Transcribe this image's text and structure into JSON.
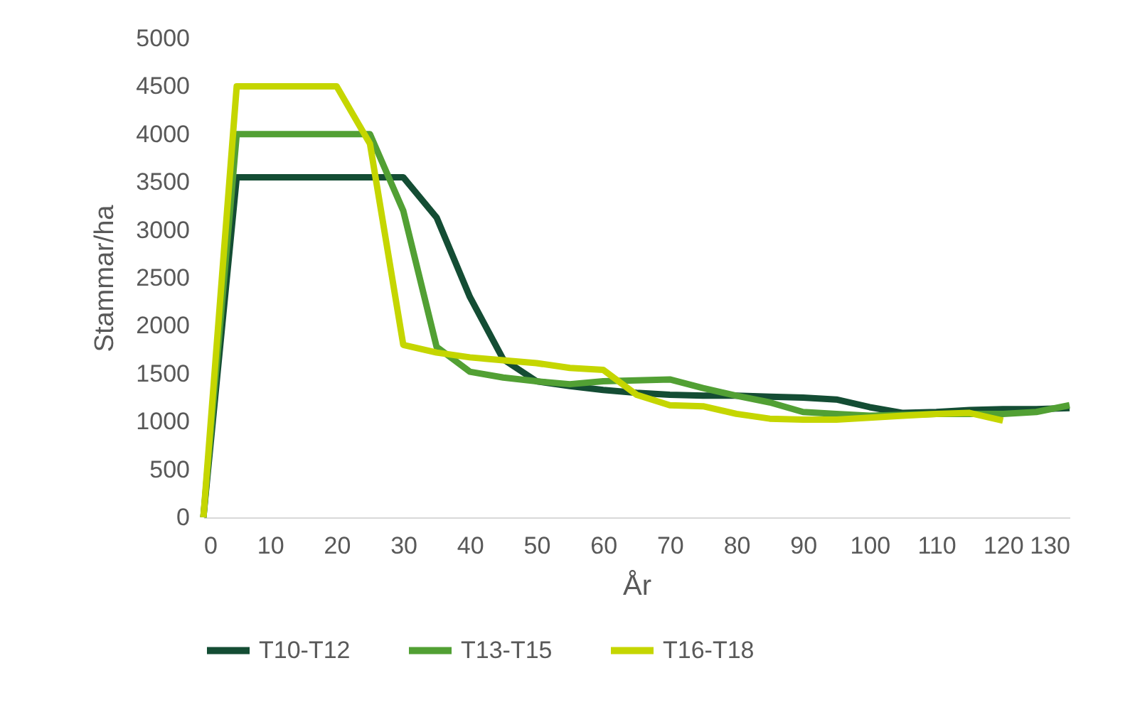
{
  "chart_data": {
    "type": "line",
    "xlabel": "År",
    "ylabel": "Stammar/ha",
    "x": [
      0,
      5,
      10,
      15,
      20,
      25,
      30,
      35,
      40,
      45,
      50,
      55,
      60,
      65,
      70,
      75,
      80,
      85,
      90,
      95,
      100,
      105,
      110,
      115,
      120,
      125,
      130
    ],
    "xlim": [
      0,
      130
    ],
    "xticks": [
      0,
      10,
      20,
      30,
      40,
      50,
      60,
      70,
      80,
      90,
      100,
      110,
      120,
      130
    ],
    "ylim": [
      0,
      5000
    ],
    "yticks": [
      0,
      500,
      1000,
      1500,
      2000,
      2500,
      3000,
      3500,
      4000,
      4500,
      5000
    ],
    "grid": false,
    "legend": "bottom",
    "marker": "none",
    "line_style": "solid",
    "series": [
      {
        "name": "T10-T12",
        "color": "#144d34",
        "values": [
          0,
          3550,
          3550,
          3550,
          3550,
          3550,
          3550,
          3130,
          2300,
          1650,
          1420,
          1370,
          1330,
          1300,
          1280,
          1270,
          1270,
          1260,
          1250,
          1230,
          1150,
          1090,
          1100,
          1120,
          1130,
          1130,
          1140
        ]
      },
      {
        "name": "T13-T15",
        "color": "#52a034",
        "values": [
          0,
          4000,
          4000,
          4000,
          4000,
          4000,
          3200,
          1780,
          1520,
          1460,
          1420,
          1390,
          1420,
          1430,
          1440,
          1350,
          1270,
          1200,
          1100,
          1080,
          1060,
          1070,
          1080,
          1080,
          1080,
          1100,
          1170
        ]
      },
      {
        "name": "T16-T18",
        "color": "#c5d600",
        "values": [
          0,
          4500,
          4500,
          4500,
          4500,
          3900,
          1800,
          1720,
          1670,
          1640,
          1610,
          1560,
          1540,
          1280,
          1170,
          1160,
          1080,
          1030,
          1020,
          1020,
          1040,
          1060,
          1080,
          1090,
          1010,
          null,
          null
        ]
      }
    ]
  }
}
